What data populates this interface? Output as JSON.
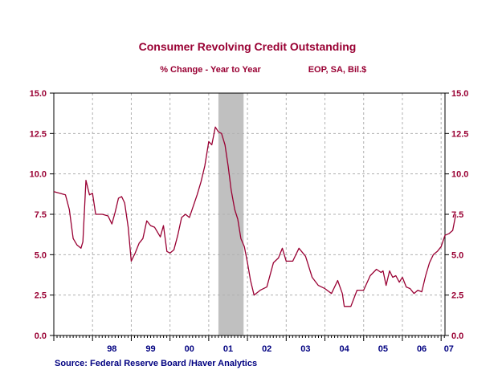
{
  "chart_data": {
    "type": "line",
    "title": "Consumer Revolving Credit Outstanding",
    "subtitle_left": "% Change - Year to Year",
    "subtitle_right": "EOP, SA, Bil.$",
    "source": "Source:  Federal Reserve Board /Haver Analytics",
    "ylim": [
      0,
      15
    ],
    "y_ticks": [
      "0.0",
      "2.5",
      "5.0",
      "7.5",
      "10.0",
      "12.5",
      "15.0"
    ],
    "xlim": [
      1997.0,
      2007.1
    ],
    "x_ticks": [
      {
        "label": "98",
        "x": 1998.5
      },
      {
        "label": "99",
        "x": 1999.5
      },
      {
        "label": "00",
        "x": 2000.5
      },
      {
        "label": "01",
        "x": 2001.5
      },
      {
        "label": "02",
        "x": 2002.5
      },
      {
        "label": "03",
        "x": 2003.5
      },
      {
        "label": "04",
        "x": 2004.5
      },
      {
        "label": "05",
        "x": 2005.5
      },
      {
        "label": "06",
        "x": 2006.5
      },
      {
        "label": "07",
        "x": 2007.2
      }
    ],
    "grid": true,
    "recession": [
      2001.25,
      2001.9
    ],
    "line_color": "#990033",
    "series": [
      {
        "values": [
          [
            1997.0,
            8.9
          ],
          [
            1997.15,
            8.8
          ],
          [
            1997.3,
            8.7
          ],
          [
            1997.4,
            7.8
          ],
          [
            1997.5,
            6.0
          ],
          [
            1997.6,
            5.6
          ],
          [
            1997.7,
            5.4
          ],
          [
            1997.75,
            5.8
          ],
          [
            1997.83,
            9.6
          ],
          [
            1997.92,
            8.7
          ],
          [
            1998.0,
            8.8
          ],
          [
            1998.08,
            7.5
          ],
          [
            1998.25,
            7.5
          ],
          [
            1998.4,
            7.4
          ],
          [
            1998.5,
            6.9
          ],
          [
            1998.58,
            7.6
          ],
          [
            1998.67,
            8.5
          ],
          [
            1998.75,
            8.6
          ],
          [
            1998.83,
            8.2
          ],
          [
            1998.92,
            6.7
          ],
          [
            1999.0,
            4.6
          ],
          [
            1999.1,
            5.1
          ],
          [
            1999.2,
            5.7
          ],
          [
            1999.3,
            6.0
          ],
          [
            1999.4,
            7.1
          ],
          [
            1999.5,
            6.8
          ],
          [
            1999.6,
            6.7
          ],
          [
            1999.75,
            6.1
          ],
          [
            1999.83,
            6.8
          ],
          [
            1999.92,
            5.2
          ],
          [
            2000.0,
            5.1
          ],
          [
            2000.1,
            5.3
          ],
          [
            2000.2,
            6.2
          ],
          [
            2000.3,
            7.3
          ],
          [
            2000.4,
            7.5
          ],
          [
            2000.5,
            7.3
          ],
          [
            2000.6,
            8.0
          ],
          [
            2000.7,
            8.7
          ],
          [
            2000.8,
            9.5
          ],
          [
            2000.9,
            10.5
          ],
          [
            2001.0,
            12.0
          ],
          [
            2001.08,
            11.8
          ],
          [
            2001.17,
            12.9
          ],
          [
            2001.25,
            12.6
          ],
          [
            2001.33,
            12.5
          ],
          [
            2001.42,
            11.8
          ],
          [
            2001.5,
            10.5
          ],
          [
            2001.58,
            9.0
          ],
          [
            2001.67,
            7.8
          ],
          [
            2001.75,
            7.2
          ],
          [
            2001.83,
            6.0
          ],
          [
            2001.92,
            5.5
          ],
          [
            2002.0,
            4.5
          ],
          [
            2002.08,
            3.4
          ],
          [
            2002.17,
            2.5
          ],
          [
            2002.33,
            2.8
          ],
          [
            2002.5,
            3.0
          ],
          [
            2002.67,
            4.5
          ],
          [
            2002.8,
            4.8
          ],
          [
            2002.9,
            5.4
          ],
          [
            2003.0,
            4.6
          ],
          [
            2003.17,
            4.6
          ],
          [
            2003.33,
            5.4
          ],
          [
            2003.5,
            4.9
          ],
          [
            2003.67,
            3.6
          ],
          [
            2003.83,
            3.1
          ],
          [
            2004.0,
            2.9
          ],
          [
            2004.17,
            2.6
          ],
          [
            2004.33,
            3.4
          ],
          [
            2004.45,
            2.6
          ],
          [
            2004.5,
            1.8
          ],
          [
            2004.67,
            1.8
          ],
          [
            2004.83,
            2.8
          ],
          [
            2005.0,
            2.8
          ],
          [
            2005.17,
            3.7
          ],
          [
            2005.33,
            4.1
          ],
          [
            2005.45,
            3.9
          ],
          [
            2005.5,
            4.0
          ],
          [
            2005.58,
            3.1
          ],
          [
            2005.67,
            4.0
          ],
          [
            2005.75,
            3.6
          ],
          [
            2005.83,
            3.7
          ],
          [
            2005.92,
            3.3
          ],
          [
            2006.0,
            3.6
          ],
          [
            2006.1,
            3.0
          ],
          [
            2006.2,
            2.9
          ],
          [
            2006.3,
            2.6
          ],
          [
            2006.4,
            2.8
          ],
          [
            2006.5,
            2.7
          ],
          [
            2006.6,
            3.7
          ],
          [
            2006.7,
            4.5
          ],
          [
            2006.8,
            5.0
          ],
          [
            2006.9,
            5.2
          ],
          [
            2007.0,
            5.5
          ],
          [
            2007.1,
            6.2
          ],
          [
            2007.2,
            6.3
          ],
          [
            2007.3,
            6.5
          ],
          [
            2007.38,
            7.5
          ]
        ]
      }
    ]
  }
}
